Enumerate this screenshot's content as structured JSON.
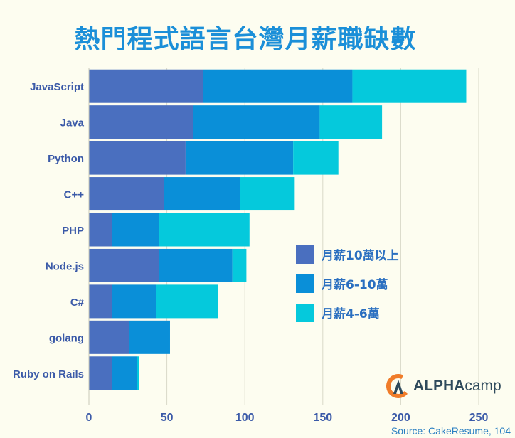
{
  "chart_data": {
    "type": "bar",
    "orientation": "horizontal",
    "stacked": true,
    "title": "熱門程式語言台灣月薪職缺數",
    "categories": [
      "JavaScript",
      "Java",
      "Python",
      "C++",
      "PHP",
      "Node.js",
      "C#",
      "golang",
      "Ruby on Rails"
    ],
    "series": [
      {
        "name": "月薪10萬以上",
        "color": "#4a6fbf",
        "values": [
          73,
          67,
          62,
          48,
          15,
          45,
          15,
          26,
          15
        ]
      },
      {
        "name": "月薪6-10萬",
        "color": "#0a8fd8",
        "values": [
          96,
          81,
          69,
          49,
          30,
          47,
          28,
          26,
          16
        ]
      },
      {
        "name": "月薪4-6萬",
        "color": "#05c9dc",
        "values": [
          73,
          40,
          29,
          35,
          58,
          9,
          40,
          0,
          1
        ]
      }
    ],
    "xlim": [
      0,
      250
    ],
    "xticks": [
      "0",
      "50",
      "100",
      "150",
      "200",
      "250"
    ],
    "grid": "vertical",
    "legend": "right"
  },
  "logo": {
    "text_bold": "ALPHA",
    "text_light": "camp",
    "icon": "alphacamp-logo-icon"
  },
  "source": "Source: CakeResume, 104"
}
